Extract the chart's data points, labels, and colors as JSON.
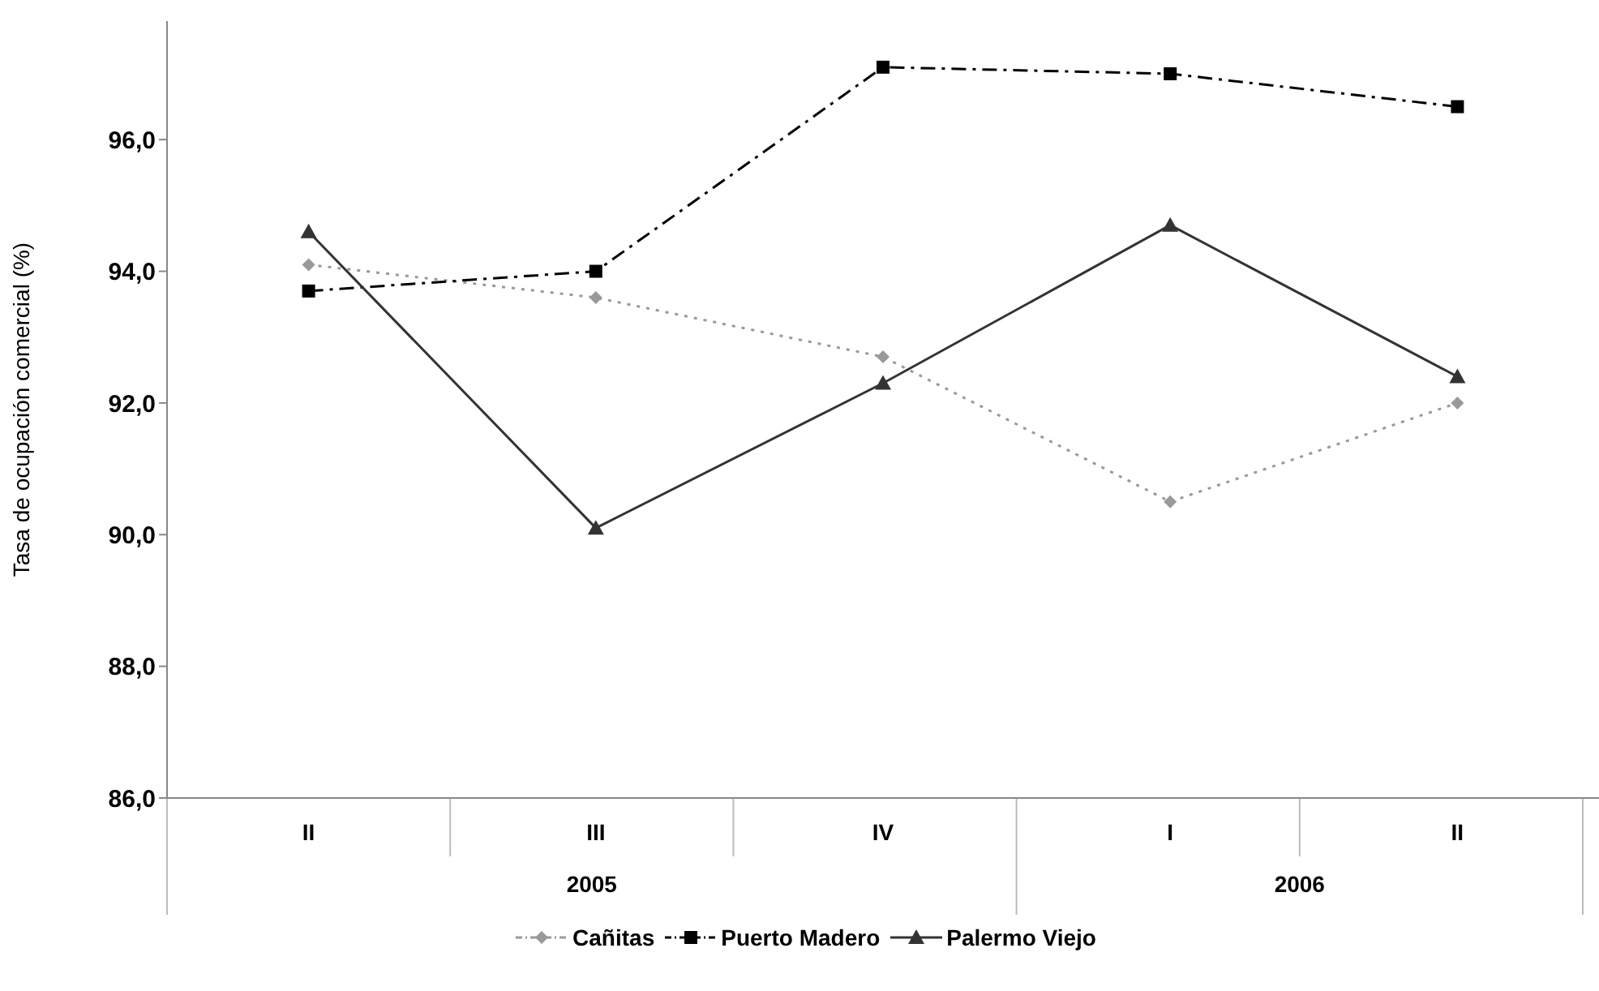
{
  "chart_data": {
    "type": "line",
    "ylabel": "Tasa de ocupación comercial (%)",
    "categories": [
      "II",
      "III",
      "IV",
      "I",
      "II"
    ],
    "annotations": [
      "2005",
      "2006"
    ],
    "ylim": [
      86,
      97.8
    ],
    "yticks": [
      {
        "value": 86,
        "label": "86,0"
      },
      {
        "value": 88,
        "label": "88,0"
      },
      {
        "value": 90,
        "label": "90,0"
      },
      {
        "value": 92,
        "label": "92,0"
      },
      {
        "value": 94,
        "label": "94,0"
      },
      {
        "value": 96,
        "label": "96,0"
      }
    ],
    "grid": false,
    "legend": "bottom",
    "series": [
      {
        "name": "Cañitas",
        "color": "#999999",
        "marker": "diamond",
        "line_style": "dotted",
        "values": [
          94.1,
          93.6,
          92.7,
          90.5,
          92.0
        ]
      },
      {
        "name": "Puerto Madero",
        "color": "#000000",
        "marker": "square",
        "line_style": "dashed",
        "values": [
          93.7,
          94.0,
          97.1,
          97.0,
          96.5
        ]
      },
      {
        "name": "Palermo Viejo",
        "color": "#333333",
        "marker": "triangle",
        "line_style": "solid",
        "values": [
          94.6,
          90.1,
          92.3,
          94.7,
          92.4
        ]
      }
    ]
  }
}
